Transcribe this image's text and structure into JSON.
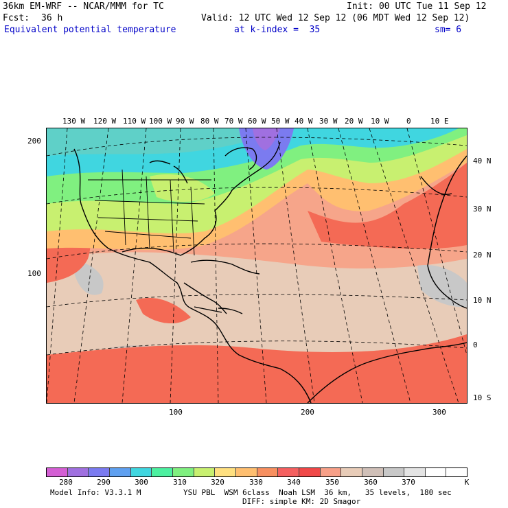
{
  "header": {
    "model": "36km EM-WRF -- NCAR/MMM for TC",
    "init": "Init: 00 UTC Tue 11 Sep 12",
    "fcst_label": "Fcst:",
    "fcst_value": "36 h",
    "valid": "Valid: 12 UTC Wed 12 Sep 12 (06 MDT Wed 12 Sep 12)",
    "field": "Equivalent potential temperature",
    "level": "at k-index =  35",
    "smoothing": "sm= 6"
  },
  "map": {
    "top_lon_labels": [
      "130 W",
      "120 W",
      "110 W",
      "100 W",
      "90 W",
      "80 W",
      "70 W",
      "60 W",
      "50 W",
      "40 W",
      "30 W",
      "20 W",
      "10 W",
      "0",
      "10 E"
    ],
    "right_lat_labels": [
      "40 N",
      "30 N",
      "20 N",
      "10 N",
      "0",
      "10 S"
    ],
    "left_grid_labels": [
      "200",
      "100"
    ],
    "bottom_grid_labels": [
      "100",
      "200",
      "300"
    ]
  },
  "colorbar": {
    "colors": [
      "#d45fd4",
      "#a070e0",
      "#7b7bf0",
      "#5fa0f0",
      "#40d6e0",
      "#4cf0a0",
      "#80f080",
      "#c8f070",
      "#ffe080",
      "#ffbf70",
      "#f89060",
      "#f56060",
      "#f04848",
      "#f8a088",
      "#e8ccb8",
      "#d0c0b8",
      "#c8c8c8",
      "#e4e4e4",
      "#ffffff",
      "#ffffff"
    ],
    "labels": [
      "280",
      "290",
      "300",
      "310",
      "320",
      "330",
      "340",
      "350",
      "360",
      "370"
    ],
    "unit": "K"
  },
  "footer": {
    "model_info": "Model Info: V3.3.1 M",
    "physics": "YSU PBL  WSM 6class  Noah LSM  36 km,   35 levels,  180 sec",
    "diffusion": "DIFF: simple KM: 2D Smagor"
  }
}
